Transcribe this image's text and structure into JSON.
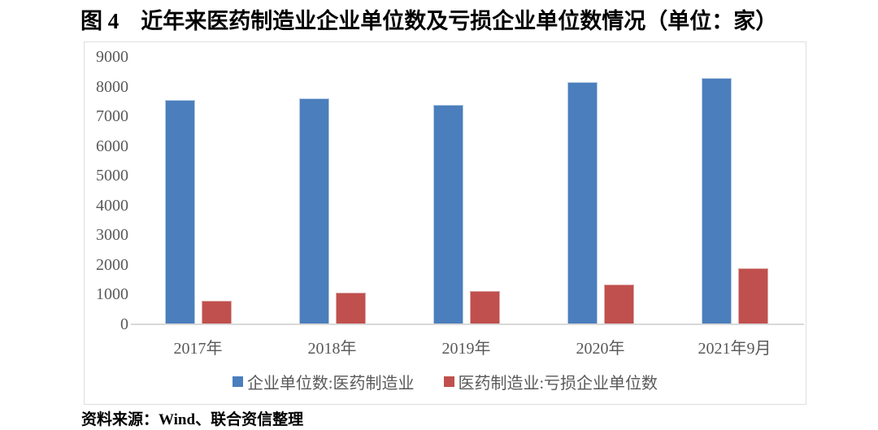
{
  "title": "图 4　近年来医药制造业企业单位数及亏损企业单位数情况（单位：家）",
  "source_note": "资料来源：Wind、联合资信整理",
  "chart_data": {
    "type": "bar",
    "title": "图 4　近年来医药制造业企业单位数及亏损企业单位数情况（单位：家）",
    "categories": [
      "2017年",
      "2018年",
      "2019年",
      "2020年",
      "2021年9月"
    ],
    "series": [
      {
        "key": "enterprise-units",
        "name": "企业单位数:医药制造业",
        "color": "#4b7ebc",
        "border_color": "#b3c9e5",
        "values": [
          7550,
          7600,
          7400,
          8150,
          8300
        ]
      },
      {
        "key": "loss-enterprise-units",
        "name": "医药制造业:亏损企业单位数",
        "color": "#c0504d",
        "border_color": "#dcaaa8",
        "values": [
          800,
          1080,
          1130,
          1330,
          1890
        ]
      }
    ],
    "xlabel": "",
    "ylabel": "",
    "unit": "家",
    "ylim": [
      0,
      9000
    ],
    "yticks": [
      0,
      1000,
      2000,
      3000,
      4000,
      5000,
      6000,
      7000,
      8000,
      9000
    ],
    "grid": false,
    "legend_position": "bottom-inside",
    "axis_label_color": "#595959",
    "axis_line_color": "#d9d9d9"
  }
}
